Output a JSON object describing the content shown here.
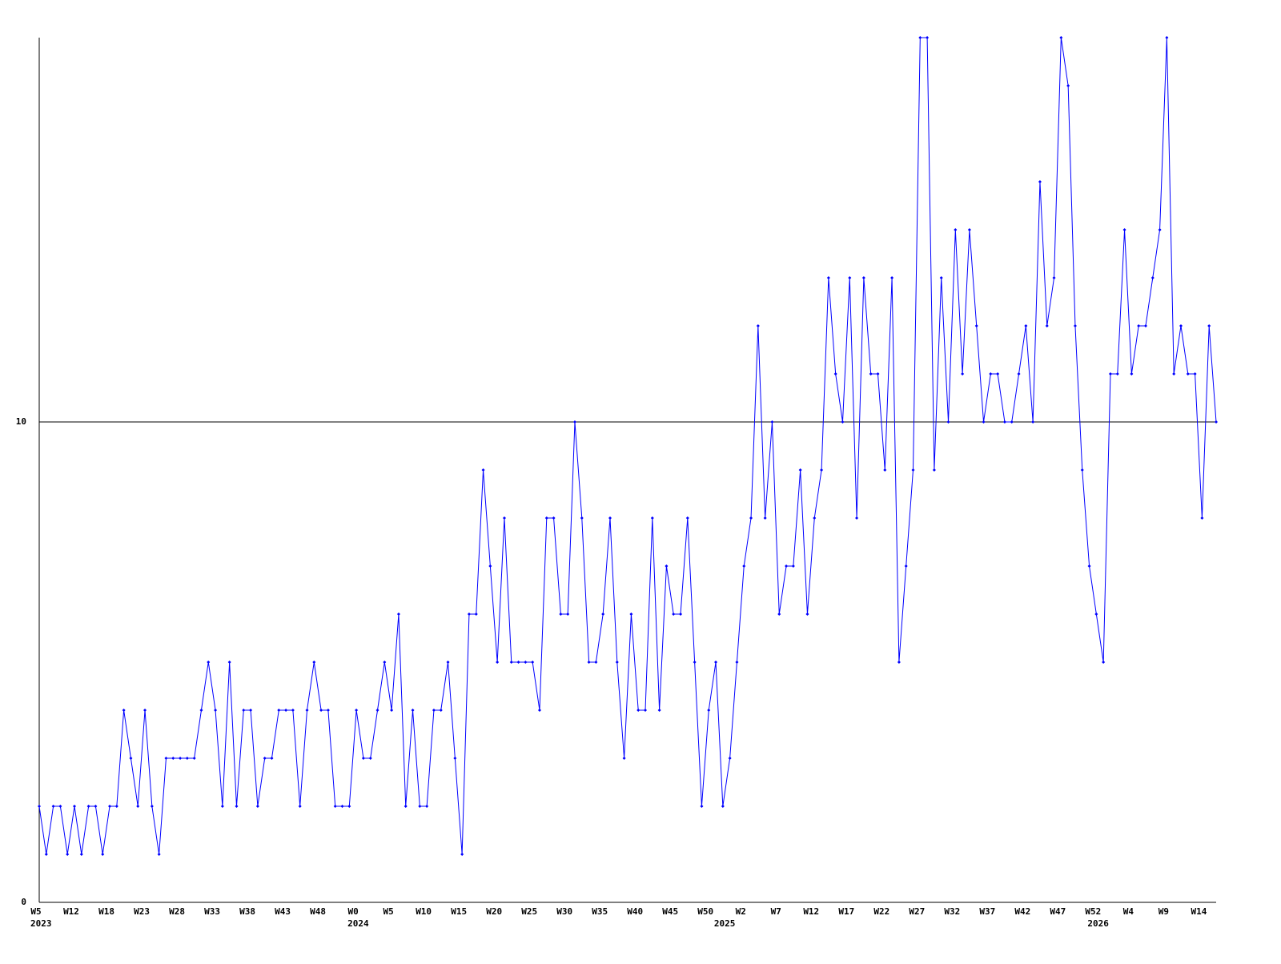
{
  "chart_data": {
    "type": "line",
    "categories": [
      "W5",
      null,
      null,
      null,
      null,
      "W12",
      null,
      null,
      null,
      null,
      "W18",
      null,
      null,
      null,
      null,
      "W23",
      null,
      null,
      null,
      null,
      "W28",
      null,
      null,
      null,
      null,
      "W33",
      null,
      null,
      null,
      null,
      "W38",
      null,
      null,
      null,
      null,
      "W43",
      null,
      null,
      null,
      null,
      "W48",
      null,
      null,
      null,
      null,
      "W0",
      null,
      null,
      null,
      null,
      "W5",
      null,
      null,
      null,
      null,
      "W10",
      null,
      null,
      null,
      null,
      "W15",
      null,
      null,
      null,
      null,
      "W20",
      null,
      null,
      null,
      null,
      "W25",
      null,
      null,
      null,
      null,
      "W30",
      null,
      null,
      null,
      null,
      "W35",
      null,
      null,
      null,
      null,
      "W40",
      null,
      null,
      null,
      null,
      "W45",
      null,
      null,
      null,
      null,
      "W50",
      null,
      null,
      null,
      null,
      "W2",
      null,
      null,
      null,
      null,
      "W7",
      null,
      null,
      null,
      null,
      "W12",
      null,
      null,
      null,
      null,
      "W17",
      null,
      null,
      null,
      null,
      "W22",
      null,
      null,
      null,
      null,
      "W27",
      null,
      null,
      null,
      null,
      "W32",
      null,
      null,
      null,
      null,
      "W37",
      null,
      null,
      null,
      null,
      "W42",
      null,
      null,
      null,
      null,
      "W47",
      null,
      null,
      null,
      null,
      "W52",
      null,
      null,
      null,
      null,
      "W4",
      null,
      null,
      null,
      null,
      "W9",
      null,
      null,
      null,
      null,
      "W14",
      null,
      null
    ],
    "years": [
      "2023",
      null,
      null,
      null,
      null,
      null,
      null,
      null,
      null,
      null,
      null,
      null,
      null,
      null,
      null,
      null,
      null,
      null,
      null,
      null,
      null,
      null,
      null,
      null,
      null,
      null,
      null,
      null,
      null,
      null,
      null,
      null,
      null,
      null,
      null,
      null,
      null,
      null,
      null,
      null,
      null,
      null,
      null,
      null,
      null,
      "2024",
      null,
      null,
      null,
      null,
      null,
      null,
      null,
      null,
      null,
      null,
      null,
      null,
      null,
      null,
      null,
      null,
      null,
      null,
      null,
      null,
      null,
      null,
      null,
      null,
      null,
      null,
      null,
      null,
      null,
      null,
      null,
      null,
      null,
      null,
      null,
      null,
      null,
      null,
      null,
      null,
      null,
      null,
      null,
      null,
      null,
      null,
      null,
      null,
      null,
      null,
      null,
      "2025",
      null,
      null,
      null,
      null,
      null,
      null,
      null,
      null,
      null,
      null,
      null,
      null,
      null,
      null,
      null,
      null,
      null,
      null,
      null,
      null,
      null,
      null,
      null,
      null,
      null,
      null,
      null,
      null,
      null,
      null,
      null,
      null,
      null,
      null,
      null,
      null,
      null,
      null,
      null,
      null,
      null,
      null,
      null,
      null,
      null,
      null,
      null,
      null,
      null,
      null,
      null,
      null,
      "2026",
      null,
      null,
      null,
      null,
      null,
      null,
      null,
      null,
      null,
      null,
      null,
      null,
      null,
      null,
      null,
      null,
      null
    ],
    "series": [
      {
        "color": "#0000ff",
        "values": [
          2,
          1,
          2,
          2,
          1,
          2,
          1,
          2,
          2,
          1,
          2,
          2,
          4,
          3,
          2,
          4,
          2,
          1,
          3,
          3,
          3,
          3,
          3,
          4,
          5,
          4,
          2,
          5,
          2,
          4,
          4,
          2,
          3,
          3,
          4,
          4,
          4,
          2,
          4,
          5,
          4,
          4,
          2,
          2,
          2,
          4,
          3,
          3,
          4,
          5,
          4,
          6,
          2,
          4,
          2,
          2,
          4,
          4,
          5,
          3,
          1,
          6,
          6,
          9,
          7,
          5,
          8,
          5,
          5,
          5,
          5,
          4,
          8,
          8,
          6,
          6,
          10,
          8,
          5,
          5,
          6,
          8,
          5,
          3,
          6,
          4,
          4,
          8,
          4,
          7,
          6,
          6,
          8,
          5,
          2,
          4,
          5,
          2,
          3,
          5,
          7,
          8,
          12,
          8,
          10,
          6,
          7,
          7,
          9,
          6,
          8,
          9,
          13,
          11,
          10,
          13,
          8,
          13,
          11,
          11,
          9,
          13,
          5,
          7,
          9,
          18,
          18,
          9,
          13,
          10,
          14,
          11,
          14,
          12,
          10,
          11,
          11,
          10,
          10,
          11,
          12,
          10,
          15,
          12,
          13,
          18,
          17,
          12,
          9,
          7,
          6,
          5,
          11,
          11,
          14,
          11,
          12,
          12,
          13,
          14,
          18,
          11,
          12,
          11,
          11,
          8,
          12,
          10
        ]
      }
    ],
    "ylim": [
      0,
      18
    ],
    "yticks": [
      0,
      10
    ],
    "grid": true
  }
}
